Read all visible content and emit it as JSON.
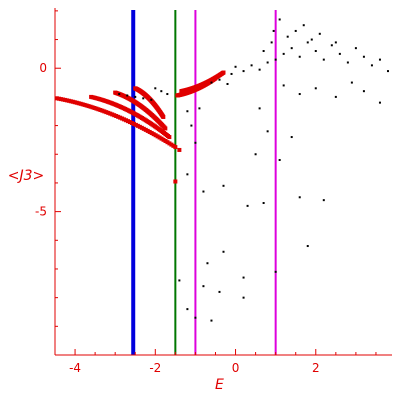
{
  "chart_data": {
    "type": "scatter",
    "xlabel": "E",
    "ylabel": "<J3>",
    "xlim": [
      -4.5,
      3.9
    ],
    "ylim": [
      -10.0,
      2.1
    ],
    "grid": false,
    "x_ticks": [
      -4,
      -2,
      0,
      2
    ],
    "x_tick_labels": [
      "-4",
      "-2",
      "0",
      "2"
    ],
    "y_ticks": [
      0,
      -5
    ],
    "y_tick_labels": [
      "0",
      "-5"
    ],
    "colors": {
      "axis": "#e00000",
      "red_points": "#e00000",
      "black_points": "#000000",
      "line_blue": "#0000dd",
      "line_green": "#007700",
      "line_magenta": "#dd00dd"
    },
    "vertical_lines": [
      {
        "x": -2.55,
        "color": "#0000dd"
      },
      {
        "x": -1.5,
        "color": "#007700"
      },
      {
        "x": -1.0,
        "color": "#dd00dd"
      },
      {
        "x": 1.0,
        "color": "#dd00dd"
      }
    ],
    "red_series": [
      {
        "x_start": -4.45,
        "x_end": -1.5,
        "y_start": -1.05,
        "y_end": -2.75
      },
      {
        "x_start": -3.6,
        "x_end": -1.65,
        "y_start": -1.0,
        "y_end": -2.4
      },
      {
        "x_start": -3.0,
        "x_end": -1.75,
        "y_start": -0.85,
        "y_end": -2.1
      },
      {
        "x_start": -2.5,
        "x_end": -1.8,
        "y_start": -0.7,
        "y_end": -1.7
      },
      {
        "x_start": -1.35,
        "x_end": -0.3,
        "y_start": -0.8,
        "y_end": -0.15
      },
      {
        "x_start": -1.45,
        "x_end": -0.5,
        "y_start": -0.95,
        "y_end": -0.35
      }
    ],
    "red_isolated": [
      {
        "x": -1.5,
        "y": -3.95
      },
      {
        "x": -1.4,
        "y": -2.85
      }
    ],
    "black_scatter": [
      [
        -2.9,
        -0.9
      ],
      [
        -2.7,
        -0.95
      ],
      [
        -2.5,
        -1.0
      ],
      [
        -2.3,
        -1.05
      ],
      [
        -2.1,
        -1.1
      ],
      [
        -2.0,
        -0.7
      ],
      [
        -1.85,
        -0.8
      ],
      [
        -1.7,
        -0.9
      ],
      [
        -1.2,
        -1.5
      ],
      [
        -1.1,
        -2.0
      ],
      [
        -1.0,
        -2.6
      ],
      [
        -0.9,
        -1.4
      ],
      [
        -0.6,
        -0.5
      ],
      [
        -0.4,
        -0.4
      ],
      [
        -0.2,
        -0.55
      ],
      [
        -0.1,
        -0.2
      ],
      [
        0.0,
        0.05
      ],
      [
        0.2,
        -0.1
      ],
      [
        0.4,
        0.1
      ],
      [
        0.6,
        -0.05
      ],
      [
        0.8,
        0.2
      ],
      [
        1.0,
        0.3
      ],
      [
        1.2,
        0.5
      ],
      [
        1.4,
        0.7
      ],
      [
        1.6,
        0.4
      ],
      [
        1.8,
        0.9
      ],
      [
        2.0,
        0.6
      ],
      [
        2.2,
        0.3
      ],
      [
        2.4,
        0.8
      ],
      [
        2.6,
        0.5
      ],
      [
        2.8,
        0.2
      ],
      [
        3.0,
        0.7
      ],
      [
        3.2,
        0.4
      ],
      [
        3.4,
        0.1
      ],
      [
        3.6,
        0.3
      ],
      [
        3.8,
        -0.1
      ],
      [
        1.3,
        1.1
      ],
      [
        1.5,
        1.3
      ],
      [
        1.7,
        1.5
      ],
      [
        1.9,
        1.0
      ],
      [
        2.1,
        1.2
      ],
      [
        2.5,
        0.9
      ],
      [
        0.9,
        0.9
      ],
      [
        0.7,
        0.6
      ],
      [
        1.1,
        1.7
      ],
      [
        0.95,
        1.3
      ],
      [
        1.2,
        -0.6
      ],
      [
        1.6,
        -0.9
      ],
      [
        2.0,
        -0.7
      ],
      [
        2.5,
        -1.0
      ],
      [
        2.9,
        -0.5
      ],
      [
        3.2,
        -0.8
      ],
      [
        3.6,
        -1.2
      ],
      [
        0.6,
        -1.4
      ],
      [
        0.8,
        -2.2
      ],
      [
        0.5,
        -3.0
      ],
      [
        1.1,
        -3.2
      ],
      [
        1.4,
        -2.4
      ],
      [
        -1.2,
        -3.7
      ],
      [
        -0.8,
        -4.3
      ],
      [
        -0.3,
        -4.1
      ],
      [
        0.3,
        -4.8
      ],
      [
        0.7,
        -4.7
      ],
      [
        1.6,
        -4.5
      ],
      [
        2.2,
        -4.6
      ],
      [
        1.8,
        -6.2
      ],
      [
        1.0,
        -7.1
      ],
      [
        0.2,
        -7.3
      ],
      [
        -0.3,
        -6.4
      ],
      [
        -0.7,
        -6.8
      ],
      [
        -1.4,
        -7.4
      ],
      [
        -0.8,
        -7.6
      ],
      [
        -0.4,
        -7.8
      ],
      [
        0.2,
        -8.0
      ],
      [
        -1.0,
        -8.7
      ],
      [
        -0.6,
        -8.8
      ],
      [
        -1.2,
        -8.4
      ]
    ]
  }
}
